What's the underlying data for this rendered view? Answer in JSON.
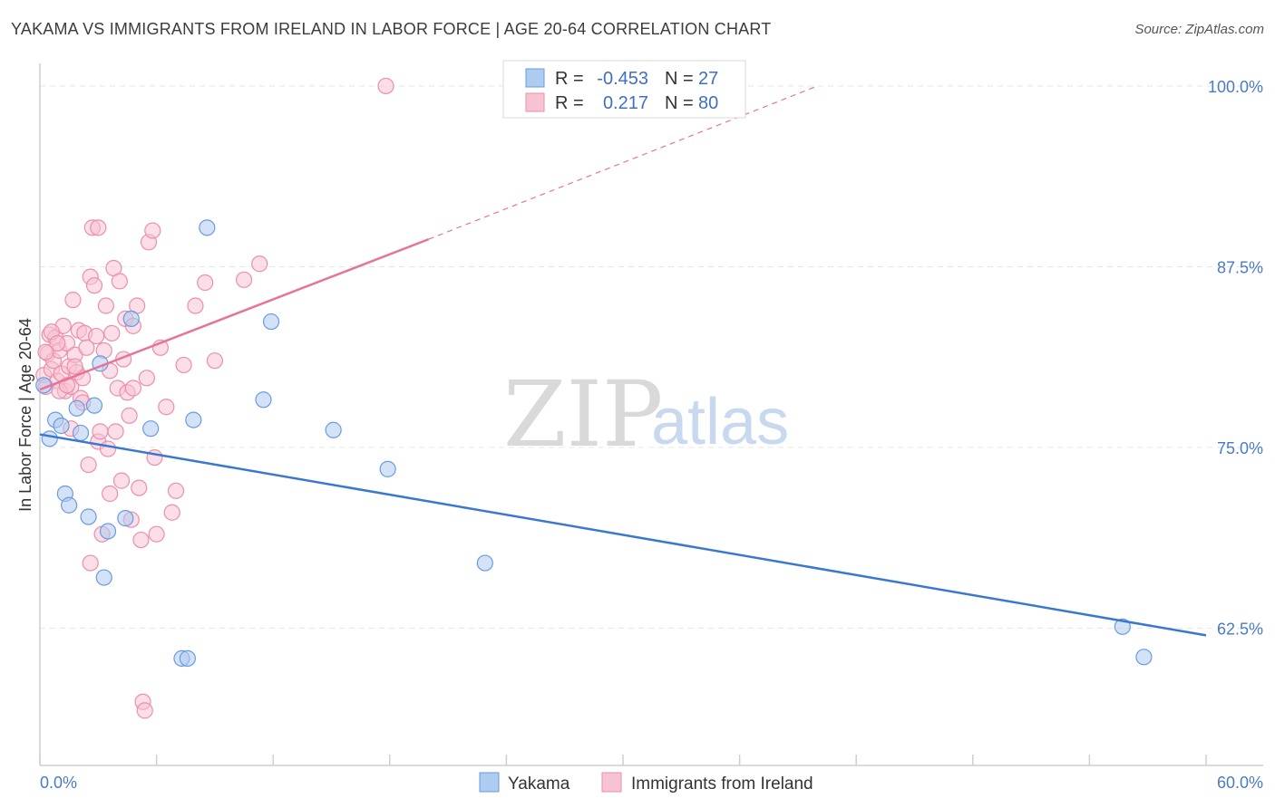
{
  "title": "YAKAMA VS IMMIGRANTS FROM IRELAND IN LABOR FORCE | AGE 20-64 CORRELATION CHART",
  "source": "Source: ZipAtlas.com",
  "watermark": {
    "zip": "ZIP",
    "atlas": "atlas"
  },
  "colors": {
    "blue_fill": "#aecbf0",
    "blue_stroke": "#6a9be0",
    "blue_line": "#3a78d0",
    "pink_fill": "#f7c3d3",
    "pink_stroke": "#eb8fab",
    "pink_line": "#e8739a"
  },
  "legend": {
    "rows": [
      {
        "r_label": "R =",
        "r_value": "-0.453",
        "n_label": "N =",
        "n_value": "27"
      },
      {
        "r_label": "R =",
        "r_value": "0.217",
        "n_label": "N =",
        "n_value": "80"
      }
    ]
  },
  "chart_data": {
    "type": "scatter",
    "title": "YAKAMA VS IMMIGRANTS FROM IRELAND IN LABOR FORCE | AGE 20-64 CORRELATION CHART",
    "xlabel": "",
    "ylabel": "In Labor Force | Age 20-64",
    "xlim": [
      0,
      60
    ],
    "ylim": [
      53,
      101
    ],
    "x_tick_labels": [
      "0.0%",
      "60.0%"
    ],
    "y_ticks": [
      62.5,
      75.0,
      87.5,
      100.0
    ],
    "y_tick_labels": [
      "62.5%",
      "75.0%",
      "87.5%",
      "100.0%"
    ],
    "grid": true,
    "series": [
      {
        "name": "Yakama",
        "r": -0.453,
        "n": 27,
        "trend": {
          "x": [
            0,
            60
          ],
          "y": [
            75.9,
            62.0
          ]
        },
        "points": [
          [
            0.2,
            79.3
          ],
          [
            0.5,
            75.6
          ],
          [
            0.8,
            76.9
          ],
          [
            1.1,
            76.5
          ],
          [
            1.3,
            71.8
          ],
          [
            1.5,
            71.0
          ],
          [
            1.9,
            77.7
          ],
          [
            2.1,
            76.0
          ],
          [
            2.5,
            70.2
          ],
          [
            2.8,
            77.9
          ],
          [
            3.1,
            80.8
          ],
          [
            3.3,
            66.0
          ],
          [
            3.5,
            69.2
          ],
          [
            4.4,
            70.1
          ],
          [
            4.7,
            83.9
          ],
          [
            5.7,
            76.3
          ],
          [
            7.3,
            60.4
          ],
          [
            7.6,
            60.4
          ],
          [
            7.9,
            76.9
          ],
          [
            8.6,
            90.2
          ],
          [
            11.5,
            78.3
          ],
          [
            11.9,
            83.7
          ],
          [
            15.1,
            76.2
          ],
          [
            17.9,
            73.5
          ],
          [
            22.9,
            67.0
          ],
          [
            55.7,
            62.6
          ],
          [
            56.8,
            60.5
          ]
        ]
      },
      {
        "name": "Immigrants from Ireland",
        "r": 0.217,
        "n": 80,
        "trend_solid": {
          "x": [
            0,
            20
          ],
          "y": [
            79.0,
            89.4
          ]
        },
        "trend_dashed": {
          "x": [
            20,
            40
          ],
          "y": [
            89.4,
            100.0
          ]
        },
        "points": [
          [
            0.2,
            80.0
          ],
          [
            0.3,
            79.2
          ],
          [
            0.4,
            81.5
          ],
          [
            0.5,
            82.8
          ],
          [
            0.6,
            80.4
          ],
          [
            0.7,
            81.0
          ],
          [
            0.8,
            82.6
          ],
          [
            0.9,
            79.6
          ],
          [
            1.0,
            81.7
          ],
          [
            1.1,
            80.1
          ],
          [
            1.2,
            83.4
          ],
          [
            1.3,
            78.9
          ],
          [
            1.4,
            82.2
          ],
          [
            1.5,
            80.6
          ],
          [
            1.6,
            79.2
          ],
          [
            1.7,
            85.2
          ],
          [
            1.8,
            81.4
          ],
          [
            1.9,
            80.2
          ],
          [
            2.0,
            83.1
          ],
          [
            2.1,
            78.4
          ],
          [
            2.2,
            79.8
          ],
          [
            2.3,
            82.9
          ],
          [
            2.4,
            81.9
          ],
          [
            2.5,
            73.8
          ],
          [
            2.6,
            86.8
          ],
          [
            2.7,
            90.2
          ],
          [
            2.8,
            86.2
          ],
          [
            2.9,
            82.7
          ],
          [
            3.0,
            75.4
          ],
          [
            3.1,
            76.1
          ],
          [
            3.2,
            69.0
          ],
          [
            3.3,
            81.7
          ],
          [
            3.4,
            84.8
          ],
          [
            3.5,
            74.9
          ],
          [
            3.6,
            80.3
          ],
          [
            3.7,
            82.9
          ],
          [
            3.8,
            87.4
          ],
          [
            3.9,
            76.1
          ],
          [
            4.0,
            79.1
          ],
          [
            4.1,
            86.5
          ],
          [
            4.2,
            72.7
          ],
          [
            4.3,
            81.1
          ],
          [
            4.4,
            83.9
          ],
          [
            4.5,
            78.8
          ],
          [
            4.6,
            77.2
          ],
          [
            4.7,
            70.0
          ],
          [
            4.8,
            83.4
          ],
          [
            5.0,
            84.8
          ],
          [
            5.1,
            72.2
          ],
          [
            5.2,
            68.6
          ],
          [
            5.3,
            57.4
          ],
          [
            5.4,
            56.8
          ],
          [
            5.5,
            79.8
          ],
          [
            5.6,
            89.2
          ],
          [
            5.8,
            90.0
          ],
          [
            5.9,
            74.3
          ],
          [
            6.0,
            69.0
          ],
          [
            6.2,
            81.9
          ],
          [
            6.5,
            77.8
          ],
          [
            6.8,
            70.5
          ],
          [
            7.0,
            72.0
          ],
          [
            7.4,
            80.7
          ],
          [
            8.0,
            84.8
          ],
          [
            8.5,
            86.4
          ],
          [
            9.0,
            81.0
          ],
          [
            10.5,
            86.6
          ],
          [
            11.3,
            87.7
          ],
          [
            1.0,
            78.9
          ],
          [
            1.4,
            79.3
          ],
          [
            1.8,
            80.6
          ],
          [
            0.6,
            83.0
          ],
          [
            2.2,
            78.1
          ],
          [
            1.6,
            76.3
          ],
          [
            3.6,
            71.8
          ],
          [
            2.6,
            67.0
          ],
          [
            3.0,
            90.2
          ],
          [
            4.8,
            79.1
          ],
          [
            0.9,
            82.2
          ],
          [
            17.8,
            100.0
          ],
          [
            0.3,
            81.6
          ]
        ]
      }
    ]
  },
  "bottom_legend": [
    "Yakama",
    "Immigrants from Ireland"
  ]
}
